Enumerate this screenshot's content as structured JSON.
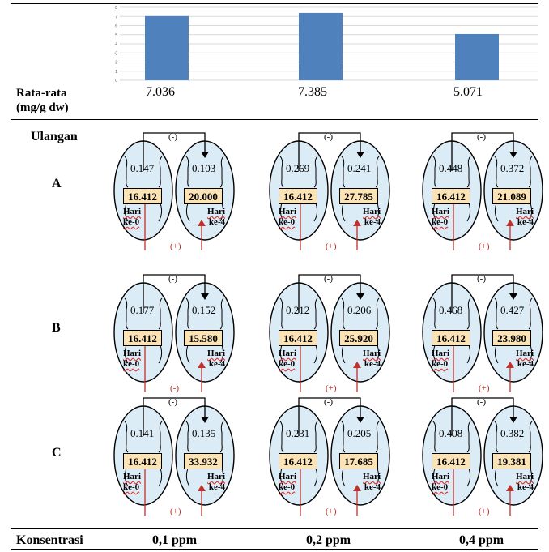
{
  "chart_data": {
    "type": "bar",
    "categories": [
      "0,1 ppm",
      "0,2 ppm",
      "0,4 ppm"
    ],
    "values": [
      7.036,
      7.385,
      5.071
    ],
    "ylim": [
      0,
      8
    ],
    "yticks": [
      "0",
      "1",
      "2",
      "3",
      "4",
      "5",
      "6",
      "7",
      "8"
    ],
    "color": "#4f81bd",
    "grid": true
  },
  "avg_label_1": "Rata-rata",
  "avg_label_2": "(mg/g dw)",
  "averages": [
    "7.036",
    "7.385",
    "5.071"
  ],
  "ulangan_label": "Ulangan",
  "konsentrasi_label": "Konsentrasi",
  "concentrations": [
    "0,1 ppm",
    "0,2 ppm",
    "0,4 ppm"
  ],
  "rows": [
    {
      "label": "A",
      "cells": [
        {
          "top_left": "0.147",
          "top_right": "0.103",
          "box_left": "16.412",
          "box_right": "20.000",
          "top_sign": "(-)",
          "bottom_sign": "(+)"
        },
        {
          "top_left": "0.269",
          "top_right": "0.241",
          "box_left": "16.412",
          "box_right": "27.785",
          "top_sign": "(-)",
          "bottom_sign": "(+)"
        },
        {
          "top_left": "0.448",
          "top_right": "0.372",
          "box_left": "16.412",
          "box_right": "21.089",
          "top_sign": "(-)",
          "bottom_sign": "(+)"
        }
      ]
    },
    {
      "label": "B",
      "cells": [
        {
          "top_left": "0.177",
          "top_right": "0.152",
          "box_left": "16.412",
          "box_right": "15.580",
          "top_sign": "(-)",
          "bottom_sign": "(-)"
        },
        {
          "top_left": "0.212",
          "top_right": "0.206",
          "box_left": "16.412",
          "box_right": "25.920",
          "top_sign": "(-)",
          "bottom_sign": "(+)"
        },
        {
          "top_left": "0.468",
          "top_right": "0.427",
          "box_left": "16.412",
          "box_right": "23.980",
          "top_sign": "(-)",
          "bottom_sign": "(+)"
        }
      ]
    },
    {
      "label": "C",
      "cells": [
        {
          "top_left": "0.141",
          "top_right": "0.135",
          "box_left": "16.412",
          "box_right": "33.932",
          "top_sign": "(-)",
          "bottom_sign": "(+)"
        },
        {
          "top_left": "0.231",
          "top_right": "0.205",
          "box_left": "16.412",
          "box_right": "17.685",
          "top_sign": "(-)",
          "bottom_sign": "(+)"
        },
        {
          "top_left": "0.408",
          "top_right": "0.382",
          "box_left": "16.412",
          "box_right": "19.381",
          "top_sign": "(-)",
          "bottom_sign": "(+)"
        }
      ]
    }
  ],
  "hari_left": [
    "Hari",
    "ke-0"
  ],
  "hari_right": [
    "Hari",
    "ke-4"
  ]
}
